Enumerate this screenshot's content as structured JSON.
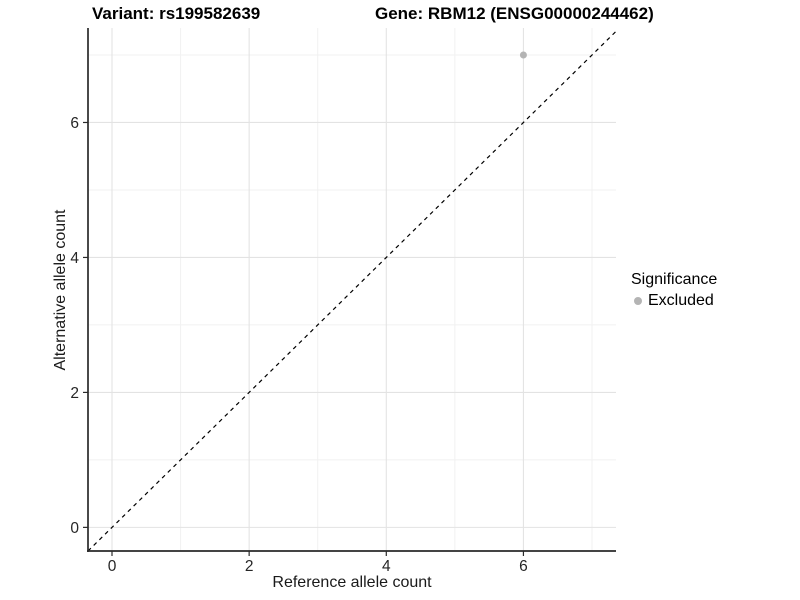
{
  "chart_data": {
    "type": "scatter",
    "title_left": "Variant: rs199582639",
    "title_right": "Gene: RBM12 (ENSG00000244462)",
    "xlabel": "Reference allele count",
    "ylabel": "Alternative allele count",
    "xlim": [
      -0.35,
      7.35
    ],
    "ylim": [
      -0.35,
      7.4
    ],
    "x_major_ticks": [
      0,
      2,
      4,
      6
    ],
    "y_major_ticks": [
      0,
      2,
      4,
      6
    ],
    "x_minor_gridlines": [
      1,
      3,
      5,
      7
    ],
    "y_minor_gridlines": [
      1,
      3,
      5,
      7
    ],
    "grid": true,
    "legend_position": "right",
    "series": [
      {
        "name": "Excluded",
        "color": "#b4b4b4",
        "points": [
          {
            "x": 6,
            "y": 7
          }
        ]
      }
    ],
    "reference_line": {
      "kind": "identity",
      "equation": "y = x",
      "style": "dashed",
      "color": "#000000"
    },
    "legend": {
      "title": "Significance",
      "items": [
        {
          "label": "Excluded",
          "color": "#b4b4b4"
        }
      ]
    },
    "colors": {
      "background": "#ffffff",
      "major_grid": "#e3e3e3",
      "minor_grid": "#f1f1f1",
      "axis_line": "#2a2a2a",
      "tick_label": "#262626",
      "point": "#b4b4b4"
    }
  }
}
